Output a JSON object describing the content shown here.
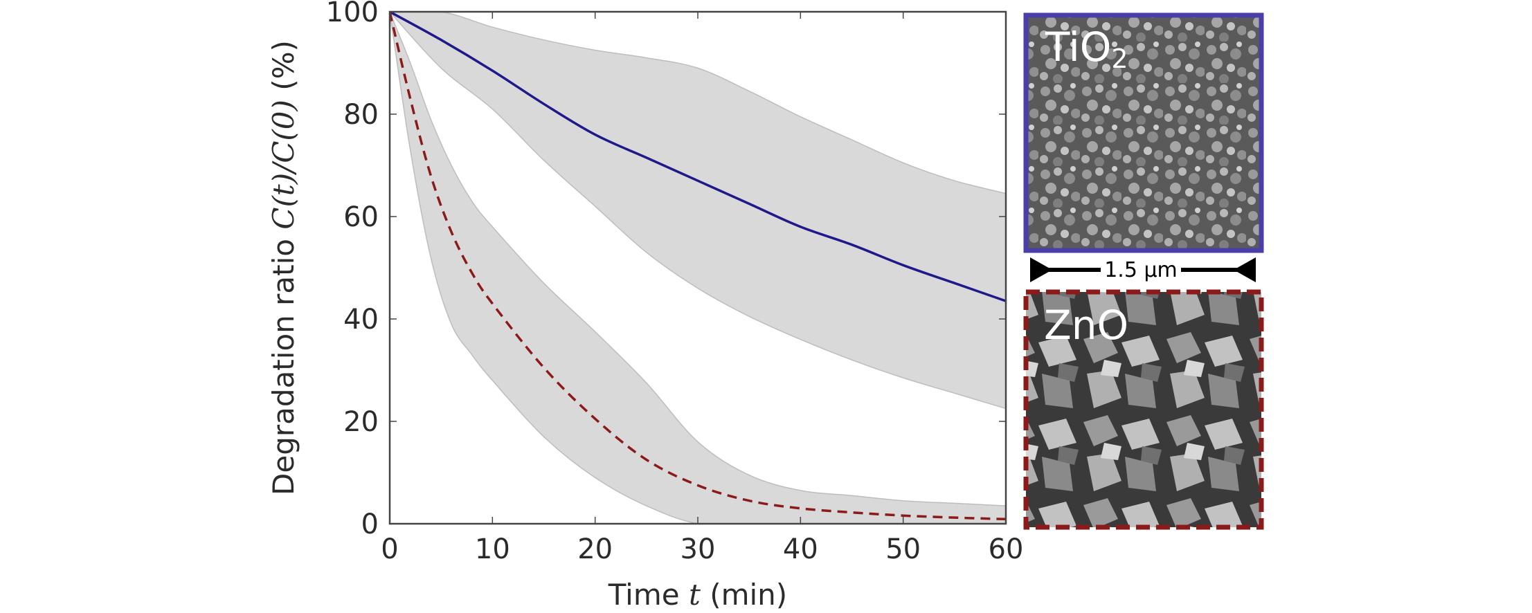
{
  "chart_data": {
    "type": "line",
    "xlabel_prefix": "Time",
    "xlabel_var": "t",
    "xlabel_unit": "(min)",
    "ylabel_prefix": "Degradation ratio",
    "ylabel_expr": "C(t)/C(0)",
    "ylabel_unit": "(%)",
    "xlim": [
      0,
      60
    ],
    "ylim": [
      0,
      100
    ],
    "x_ticks": [
      "0",
      "10",
      "20",
      "30",
      "40",
      "50",
      "60"
    ],
    "y_ticks": [
      "0",
      "20",
      "40",
      "60",
      "80",
      "100"
    ],
    "grid": false,
    "series": [
      {
        "color": "#1f1a8a",
        "style": "solid",
        "x": [
          0,
          5,
          10,
          15,
          20,
          25,
          30,
          35,
          40,
          45,
          50,
          55,
          60
        ],
        "y": [
          100,
          94.5,
          88.5,
          82,
          76,
          71.5,
          67,
          62.5,
          58,
          54.5,
          50.5,
          47,
          43.5
        ],
        "band_upper": [
          100,
          100,
          97,
          94.5,
          92.5,
          91,
          89,
          84.5,
          79.5,
          75,
          70.5,
          67,
          64.5
        ],
        "band_lower": [
          100,
          89,
          81,
          71,
          62,
          53,
          46,
          40.5,
          36,
          32,
          28.5,
          25.5,
          22.5
        ]
      },
      {
        "color": "#8b1a1a",
        "style": "dashed",
        "x": [
          0,
          2,
          4,
          6,
          8,
          10,
          15,
          20,
          25,
          30,
          35,
          40,
          45,
          50,
          55,
          60
        ],
        "y": [
          100,
          83,
          68,
          57,
          49,
          43,
          30.5,
          20.5,
          12.5,
          7.5,
          4.5,
          3,
          2.2,
          1.6,
          1.2,
          0.9
        ],
        "band_upper": [
          100,
          90,
          79,
          70,
          63,
          58,
          47,
          37.5,
          27.5,
          16,
          9.5,
          6.5,
          5.5,
          4.5,
          4,
          3.5
        ],
        "band_lower": [
          100,
          73,
          52,
          39,
          33,
          28,
          17,
          9,
          3.5,
          0,
          0,
          0,
          0,
          0,
          0,
          0
        ]
      }
    ]
  },
  "insets": [
    {
      "label_main": "TiO",
      "label_sub": "2",
      "border_color": "#4a3fa8",
      "border_style": "solid"
    },
    {
      "label_main": "ZnO",
      "label_sub": "",
      "border_color": "#8b1a1a",
      "border_style": "dashed"
    }
  ],
  "scale_bar": {
    "label": "1.5 µm"
  },
  "colors": {
    "band": "#d9d9d9",
    "band_stroke": "#bdbdbd",
    "axis": "#444444"
  }
}
